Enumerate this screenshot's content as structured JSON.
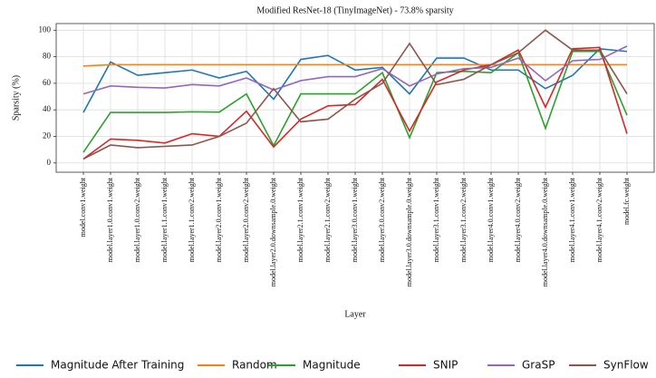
{
  "chart_data": {
    "type": "line",
    "title": "Modified ResNet-18 (TinyImageNet) - 73.8% sparsity",
    "xlabel": "Layer",
    "ylabel": "Sparsity (%)",
    "categories": [
      "model.conv1.weight",
      "model.layer1.0.conv1.weight",
      "model.layer1.0.conv2.weight",
      "model.layer1.1.conv1.weight",
      "model.layer1.1.conv2.weight",
      "model.layer2.0.conv1.weight",
      "model.layer2.0.conv2.weight",
      "model.layer2.0.downsample.0.weight",
      "model.layer2.1.conv1.weight",
      "model.layer2.1.conv2.weight",
      "model.layer3.0.conv1.weight",
      "model.layer3.0.conv2.weight",
      "model.layer3.0.downsample.0.weight",
      "model.layer3.1.conv1.weight",
      "model.layer3.1.conv2.weight",
      "model.layer4.0.conv1.weight",
      "model.layer4.0.conv2.weight",
      "model.layer4.0.downsample.0.weight",
      "model.layer4.1.conv1.weight",
      "model.layer4.1.conv2.weight",
      "model.fc.weight"
    ],
    "ylim": [
      -7,
      105
    ],
    "yticks": [
      0,
      20,
      40,
      60,
      80,
      100
    ],
    "grid": true,
    "legend": "bottom",
    "series": [
      {
        "name": "Magnitude After Training",
        "color": "#1f77b4",
        "values": [
          38,
          76,
          66,
          68,
          70,
          64,
          69,
          48,
          78,
          81,
          70,
          72,
          52,
          79,
          79,
          70,
          70,
          56,
          66,
          86,
          84
        ]
      },
      {
        "name": "Random",
        "color": "#ff7f0e",
        "values": [
          73,
          74,
          74,
          74,
          74,
          74,
          74,
          74,
          74,
          74,
          74,
          74,
          74,
          74,
          74,
          74,
          74,
          74,
          74,
          74,
          74
        ]
      },
      {
        "name": "Magnitude",
        "color": "#2ca02c",
        "values": [
          8,
          38,
          38,
          38,
          38.5,
          38.3,
          52,
          13,
          52,
          52,
          52,
          68,
          19,
          68,
          69,
          68,
          83,
          26,
          84,
          84,
          36
        ]
      },
      {
        "name": "SNIP",
        "color": "#d62728",
        "values": [
          3,
          18,
          17,
          15,
          22,
          20,
          39,
          12,
          33,
          43,
          44,
          63,
          24,
          61,
          70,
          74,
          85,
          42,
          86,
          87,
          22
        ]
      },
      {
        "name": "GraSP",
        "color": "#9467bd",
        "values": [
          52,
          58,
          57,
          56.5,
          59,
          58,
          64,
          55,
          62,
          65,
          65,
          71,
          58,
          67,
          71,
          72,
          79,
          62,
          77,
          78,
          88
        ]
      },
      {
        "name": "SynFlow",
        "color": "#8c564b",
        "values": [
          3,
          13.5,
          11.5,
          12.5,
          13.5,
          20,
          30,
          56,
          31,
          33,
          48,
          60,
          90,
          59,
          63,
          74,
          83,
          100,
          85,
          85,
          52
        ]
      }
    ]
  }
}
